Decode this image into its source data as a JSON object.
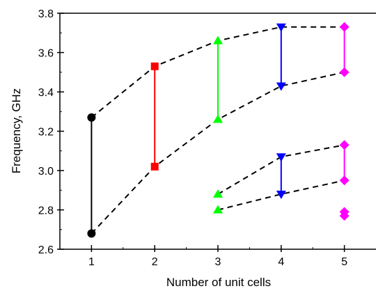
{
  "chart_data": {
    "type": "scatter",
    "xlabel": "Number of unit cells",
    "ylabel": "Frequency, GHz",
    "xlim": [
      0.5,
      5.5
    ],
    "ylim": [
      2.6,
      3.8
    ],
    "xticks": [
      1,
      2,
      3,
      4,
      5
    ],
    "yticks": [
      2.6,
      2.8,
      3.0,
      3.2,
      3.4,
      3.6,
      3.8
    ],
    "ytick_labels": [
      "2.6",
      "2.8",
      "3.0",
      "3.2",
      "3.4",
      "3.6",
      "3.8"
    ],
    "grid": false,
    "legend": "none",
    "series": [
      {
        "x": 1,
        "color": "#000000",
        "marker": "circle",
        "values": [
          3.27,
          2.68
        ],
        "range_bar": [
          2.68,
          3.27
        ]
      },
      {
        "x": 2,
        "color": "#ff0000",
        "marker": "square",
        "values": [
          3.53,
          3.02
        ],
        "range_bar": [
          3.02,
          3.53
        ]
      },
      {
        "x": 3,
        "color": "#00ff00",
        "marker": "triangle-up",
        "values": [
          3.66,
          3.26,
          2.88,
          2.8
        ],
        "range_bar": [
          3.26,
          3.66
        ]
      },
      {
        "x": 4,
        "color": "#0000ff",
        "marker": "triangle-down",
        "values": [
          3.73,
          3.43,
          3.07,
          2.88
        ],
        "range_bar": [
          3.43,
          3.73
        ],
        "range_bar_2": [
          2.88,
          3.07
        ]
      },
      {
        "x": 5,
        "color": "#ff00ff",
        "marker": "diamond",
        "values": [
          3.73,
          3.5,
          3.13,
          2.95,
          2.79,
          2.77
        ],
        "range_bar": [
          3.5,
          3.73
        ],
        "range_bar_2": [
          2.95,
          3.13
        ]
      }
    ],
    "dashed_trends": [
      {
        "x": [
          1,
          2,
          3,
          4,
          5
        ],
        "y": [
          3.27,
          3.53,
          3.66,
          3.73,
          3.73
        ]
      },
      {
        "x": [
          1,
          2,
          3,
          4,
          5
        ],
        "y": [
          2.68,
          3.02,
          3.26,
          3.43,
          3.5
        ]
      },
      {
        "x": [
          3,
          4,
          5
        ],
        "y": [
          2.88,
          3.07,
          3.13
        ]
      },
      {
        "x": [
          3,
          4,
          5
        ],
        "y": [
          2.8,
          2.88,
          2.95
        ]
      }
    ]
  }
}
